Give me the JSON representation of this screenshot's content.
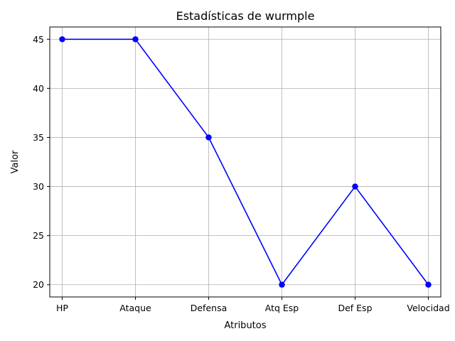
{
  "chart_data": {
    "type": "line",
    "title": "Estadísticas de wurmple",
    "xlabel": "Atributos",
    "ylabel": "Valor",
    "categories": [
      "HP",
      "Ataque",
      "Defensa",
      "Atq Esp",
      "Def Esp",
      "Velocidad"
    ],
    "series": [
      {
        "values": [
          45,
          45,
          35,
          20,
          30,
          20
        ],
        "color": "#0000ff",
        "marker": "circle"
      }
    ],
    "ylim": [
      18.75,
      46.25
    ],
    "yticks": [
      20,
      25,
      30,
      35,
      40,
      45
    ],
    "grid": true,
    "legend": false
  }
}
